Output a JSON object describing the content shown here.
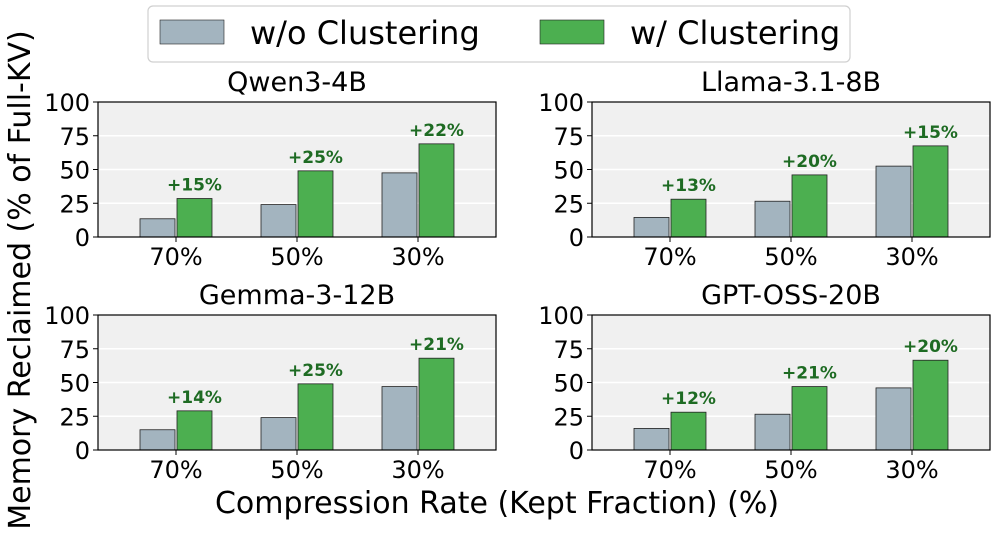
{
  "figure": {
    "ylabel": "Memory Reclaimed (% of Full-KV)",
    "xlabel": "Compression Rate (Kept Fraction) (%)",
    "legend": {
      "items": [
        {
          "label": "w/o Clustering",
          "color": "#a3b4bf"
        },
        {
          "label": "w/ Clustering",
          "color": "#4caf50"
        }
      ],
      "placement": "top-center"
    }
  },
  "chart_data": [
    {
      "type": "bar",
      "title": "Qwen3-4B",
      "categories": [
        "70%",
        "50%",
        "30%"
      ],
      "series": [
        {
          "name": "w/o Clustering",
          "values": [
            13.5,
            24,
            47.5
          ]
        },
        {
          "name": "w/ Clustering",
          "values": [
            28.5,
            49,
            69
          ]
        }
      ],
      "annotations": [
        "+15%",
        "+25%",
        "+22%"
      ],
      "ylim": [
        0,
        100
      ],
      "yticks": [
        0,
        25,
        50,
        75,
        100
      ],
      "grid": true
    },
    {
      "type": "bar",
      "title": "Llama-3.1-8B",
      "categories": [
        "70%",
        "50%",
        "30%"
      ],
      "series": [
        {
          "name": "w/o Clustering",
          "values": [
            14.5,
            26.5,
            52.5
          ]
        },
        {
          "name": "w/ Clustering",
          "values": [
            28,
            46,
            67.5
          ]
        }
      ],
      "annotations": [
        "+13%",
        "+20%",
        "+15%"
      ],
      "ylim": [
        0,
        100
      ],
      "yticks": [
        0,
        25,
        50,
        75,
        100
      ],
      "grid": true
    },
    {
      "type": "bar",
      "title": "Gemma-3-12B",
      "categories": [
        "70%",
        "50%",
        "30%"
      ],
      "series": [
        {
          "name": "w/o Clustering",
          "values": [
            15,
            24,
            47
          ]
        },
        {
          "name": "w/ Clustering",
          "values": [
            29,
            49,
            68
          ]
        }
      ],
      "annotations": [
        "+14%",
        "+25%",
        "+21%"
      ],
      "ylim": [
        0,
        100
      ],
      "yticks": [
        0,
        25,
        50,
        75,
        100
      ],
      "grid": true
    },
    {
      "type": "bar",
      "title": "GPT-OSS-20B",
      "categories": [
        "70%",
        "50%",
        "30%"
      ],
      "series": [
        {
          "name": "w/o Clustering",
          "values": [
            16,
            26.5,
            46
          ]
        },
        {
          "name": "w/ Clustering",
          "values": [
            28,
            47,
            66.5
          ]
        }
      ],
      "annotations": [
        "+12%",
        "+21%",
        "+20%"
      ],
      "ylim": [
        0,
        100
      ],
      "yticks": [
        0,
        25,
        50,
        75,
        100
      ],
      "grid": true
    }
  ],
  "colors": {
    "annotation": "#1e6b23",
    "panel_bg": "#f0f0f0",
    "grid": "#ffffff"
  }
}
